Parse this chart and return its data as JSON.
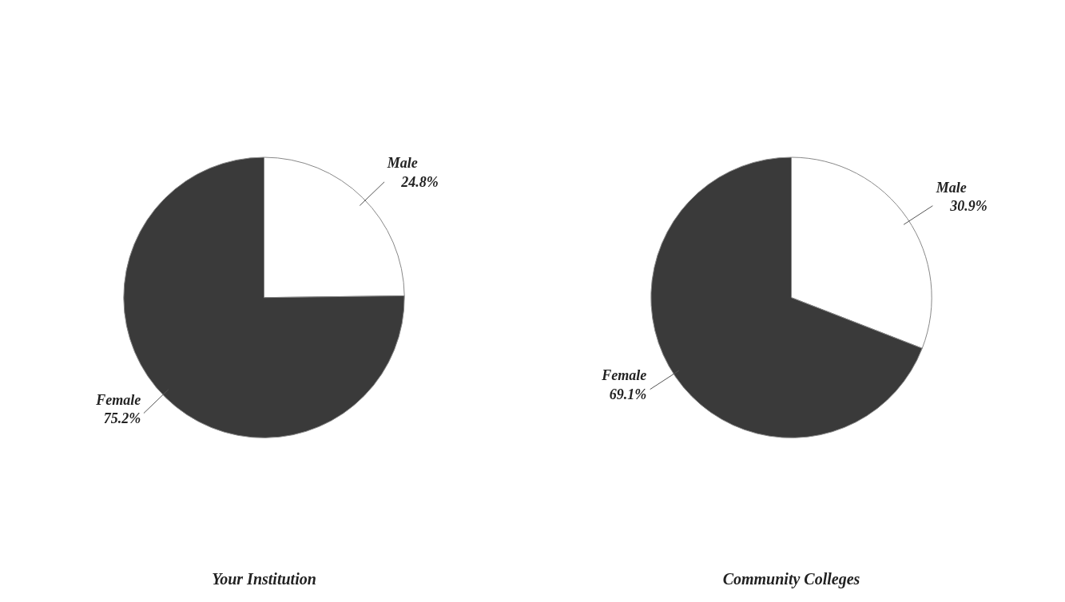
{
  "chart_data": [
    {
      "type": "pie",
      "title": "Your Institution",
      "categories": [
        "Male",
        "Female"
      ],
      "values": [
        24.8,
        75.2
      ],
      "colors": [
        "#ffffff",
        "#3a3a3a"
      ],
      "value_labels": [
        "24.8%",
        "75.2%"
      ],
      "legend": false
    },
    {
      "type": "pie",
      "title": "Community Colleges",
      "categories": [
        "Male",
        "Female"
      ],
      "values": [
        30.9,
        69.1
      ],
      "colors": [
        "#ffffff",
        "#3a3a3a"
      ],
      "value_labels": [
        "30.9%",
        "69.1%"
      ],
      "legend": false
    }
  ]
}
